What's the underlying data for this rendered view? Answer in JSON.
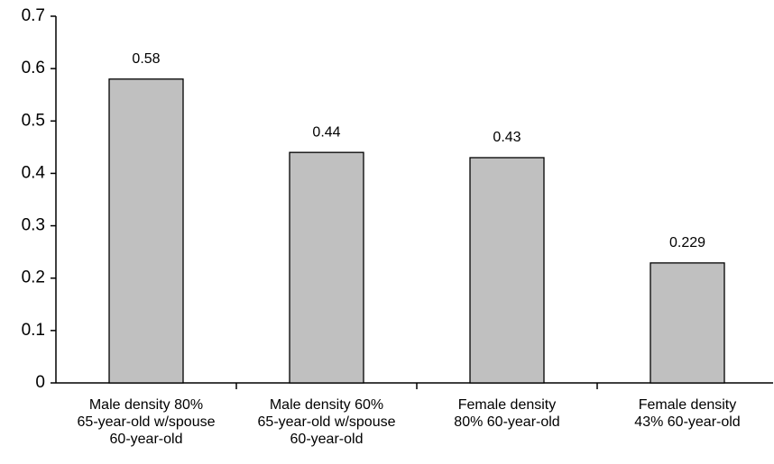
{
  "chart_data": {
    "type": "bar",
    "categories": [
      "Male density 80%\n65-year-old w/spouse\n60-year-old",
      "Male density 60%\n65-year-old w/spouse\n60-year-old",
      "Female density\n80% 60-year-old",
      "Female density\n43% 60-year-old"
    ],
    "values": [
      0.58,
      0.44,
      0.43,
      0.229
    ],
    "color": "#c0c0c0",
    "ylim": [
      0,
      0.7
    ],
    "yticks": [
      0,
      0.1,
      0.2,
      0.3,
      0.4,
      0.5,
      0.6,
      0.7
    ],
    "grid": false
  }
}
